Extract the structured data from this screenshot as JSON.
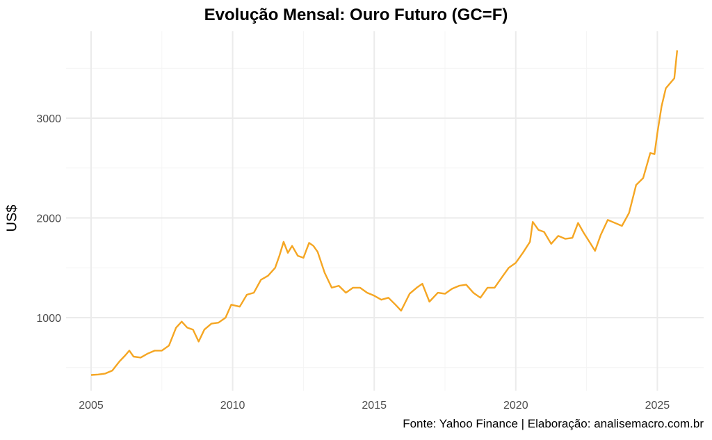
{
  "chart_data": {
    "type": "line",
    "title": "Evolução Mensal: Ouro Futuro (GC=F)",
    "xlabel": "",
    "ylabel": "US$",
    "caption": "Fonte: Yahoo Finance | Elaboração: analisemacro.com.br",
    "x_ticks": [
      "2005",
      "2010",
      "2015",
      "2020",
      "2025"
    ],
    "y_ticks": [
      "1000",
      "2000",
      "3000"
    ],
    "xlim": [
      2004.1,
      2026.6
    ],
    "ylim": [
      300,
      3800
    ],
    "grid": true,
    "legend": "none",
    "series": [
      {
        "name": "GC=F",
        "color": "#F5A623",
        "x": [
          2005.0,
          2005.25,
          2005.5,
          2005.75,
          2006.0,
          2006.2,
          2006.35,
          2006.5,
          2006.75,
          2007.0,
          2007.25,
          2007.5,
          2007.75,
          2008.0,
          2008.2,
          2008.4,
          2008.6,
          2008.8,
          2009.0,
          2009.25,
          2009.5,
          2009.75,
          2009.95,
          2010.25,
          2010.5,
          2010.75,
          2011.0,
          2011.25,
          2011.5,
          2011.65,
          2011.8,
          2011.95,
          2012.1,
          2012.3,
          2012.5,
          2012.7,
          2012.85,
          2013.0,
          2013.25,
          2013.5,
          2013.75,
          2014.0,
          2014.25,
          2014.5,
          2014.75,
          2015.0,
          2015.25,
          2015.5,
          2015.75,
          2015.95,
          2016.25,
          2016.5,
          2016.7,
          2016.95,
          2017.25,
          2017.5,
          2017.75,
          2018.0,
          2018.25,
          2018.5,
          2018.75,
          2019.0,
          2019.25,
          2019.5,
          2019.75,
          2020.0,
          2020.25,
          2020.5,
          2020.6,
          2020.8,
          2021.0,
          2021.25,
          2021.5,
          2021.75,
          2022.0,
          2022.2,
          2022.4,
          2022.6,
          2022.8,
          2023.0,
          2023.25,
          2023.5,
          2023.75,
          2024.0,
          2024.25,
          2024.5,
          2024.75,
          2024.9,
          2025.0,
          2025.15,
          2025.3,
          2025.45,
          2025.6,
          2025.7
        ],
        "values": [
          425,
          430,
          440,
          470,
          560,
          620,
          670,
          610,
          600,
          640,
          670,
          670,
          720,
          900,
          960,
          900,
          880,
          760,
          880,
          940,
          950,
          1000,
          1130,
          1110,
          1230,
          1250,
          1380,
          1420,
          1500,
          1620,
          1760,
          1650,
          1720,
          1620,
          1600,
          1750,
          1720,
          1660,
          1450,
          1300,
          1320,
          1250,
          1300,
          1300,
          1250,
          1220,
          1180,
          1200,
          1130,
          1070,
          1240,
          1300,
          1340,
          1160,
          1250,
          1240,
          1290,
          1320,
          1330,
          1250,
          1200,
          1300,
          1300,
          1400,
          1500,
          1550,
          1650,
          1760,
          1960,
          1880,
          1860,
          1740,
          1820,
          1790,
          1800,
          1950,
          1850,
          1760,
          1670,
          1830,
          1980,
          1950,
          1920,
          2050,
          2330,
          2400,
          2650,
          2640,
          2850,
          3120,
          3300,
          3350,
          3400,
          3680
        ]
      }
    ]
  }
}
